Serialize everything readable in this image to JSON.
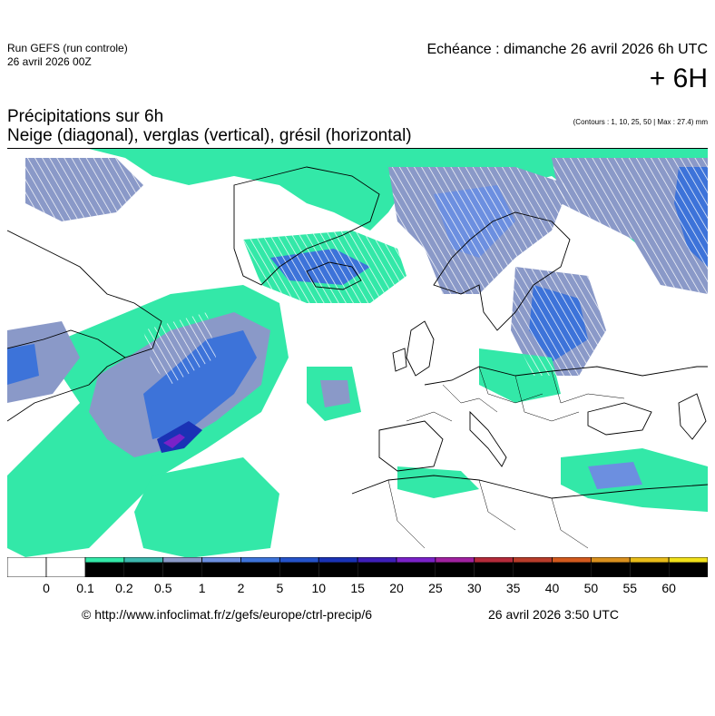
{
  "header": {
    "run_title": "Run GEFS (run controle)",
    "run_date": "26 avril 2026 00Z",
    "echeance": "Echéance : dimanche 26 avril 2026 6h UTC",
    "lead_time": "+ 6H"
  },
  "product": {
    "title": "Précipitations sur 6h",
    "subtitle": "Neige (diagonal), verglas (vertical), grésil (horizontal)",
    "contours_note": "(Contours : 1, 10, 25, 50 | Max : 27.4) mm"
  },
  "colors": {
    "precip_01": "#33e8a8",
    "precip_02": "#3cb7ae",
    "precip_05": "#8a99c8",
    "precip_1": "#6c8fe0",
    "precip_2": "#3d73d9",
    "precip_5": "#2553c9",
    "precip_10": "#1a32b5",
    "precip_20": "#7a22c8",
    "coast": "#000000",
    "background": "#ffffff"
  },
  "legend": {
    "labels": [
      "0",
      "0.1",
      "0.2",
      "0.5",
      "1",
      "2",
      "5",
      "10",
      "15",
      "20",
      "25",
      "30",
      "35",
      "40",
      "50",
      "55",
      "60"
    ],
    "colors": [
      "#ffffff",
      "#ffffff",
      "#33e8a8",
      "#3cb7ae",
      "#8a99c8",
      "#6c8fe0",
      "#3d73d9",
      "#2553c9",
      "#1a32b5",
      "#3e1fb8",
      "#7a22c8",
      "#a022a0",
      "#b42a3a",
      "#b83c2a",
      "#d25a1e",
      "#d9901e",
      "#e8bc1a",
      "#f0e01a"
    ]
  },
  "footer": {
    "url": "© http://www.infoclimat.fr/z/gefs/europe/ctrl-precip/6",
    "generated": "26 avril 2026  3:50 UTC"
  }
}
